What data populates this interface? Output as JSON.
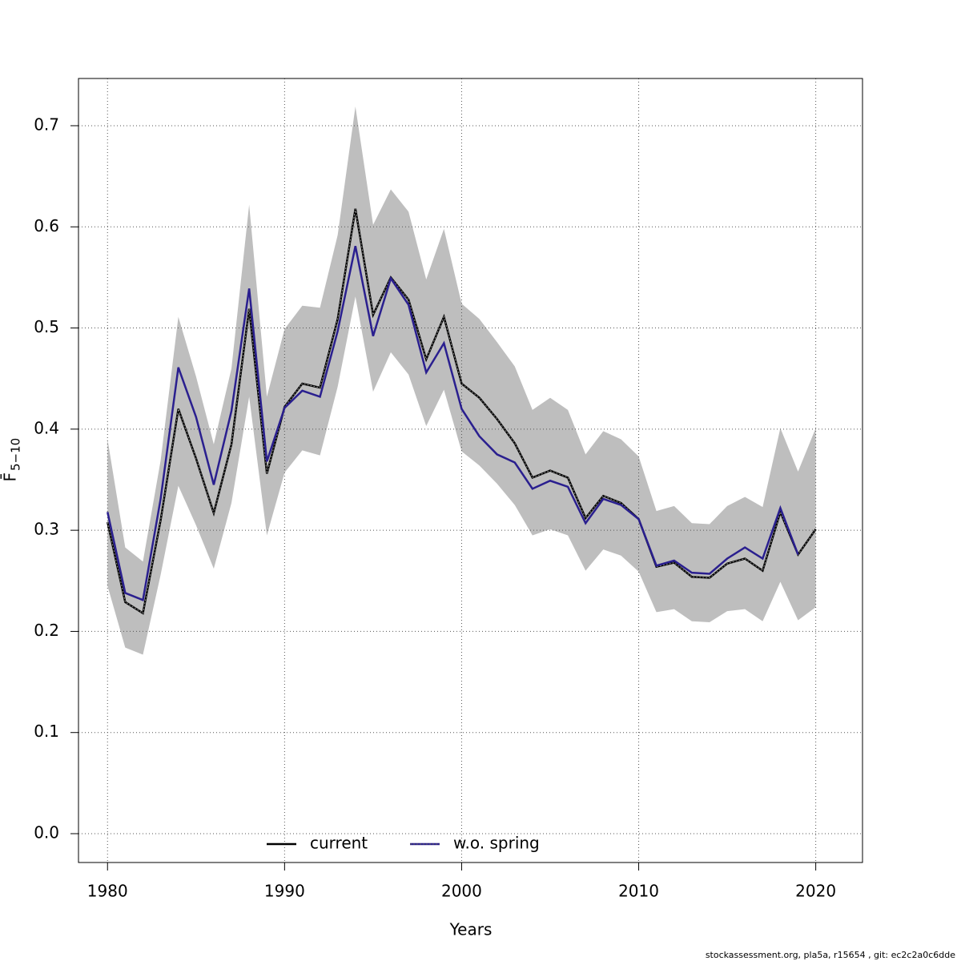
{
  "chart_data": {
    "type": "line",
    "x_label": "Years",
    "y_label": "F̄",
    "y_label_sub": "5−10",
    "footer": "stockassessment.org, pla5a, r15654 , git: ec2c2a0c6dde",
    "x": [
      1980,
      1981,
      1982,
      1983,
      1984,
      1985,
      1986,
      1987,
      1988,
      1989,
      1990,
      1991,
      1992,
      1993,
      1994,
      1995,
      1996,
      1997,
      1998,
      1999,
      2000,
      2001,
      2002,
      2003,
      2004,
      2005,
      2006,
      2007,
      2008,
      2009,
      2010,
      2011,
      2012,
      2013,
      2014,
      2015,
      2016,
      2017,
      2018,
      2019,
      2020
    ],
    "band": {
      "color": "#bebebe",
      "upper": [
        0.39,
        0.283,
        0.269,
        0.369,
        0.511,
        0.452,
        0.385,
        0.46,
        0.622,
        0.432,
        0.499,
        0.522,
        0.52,
        0.592,
        0.719,
        0.602,
        0.637,
        0.615,
        0.548,
        0.598,
        0.524,
        0.509,
        0.486,
        0.462,
        0.419,
        0.431,
        0.419,
        0.375,
        0.398,
        0.39,
        0.373,
        0.319,
        0.324,
        0.307,
        0.306,
        0.324,
        0.333,
        0.323,
        0.401,
        0.358,
        0.401
      ],
      "lower": [
        0.245,
        0.184,
        0.177,
        0.256,
        0.344,
        0.305,
        0.262,
        0.327,
        0.432,
        0.295,
        0.357,
        0.379,
        0.374,
        0.442,
        0.531,
        0.437,
        0.476,
        0.454,
        0.403,
        0.439,
        0.378,
        0.364,
        0.346,
        0.325,
        0.295,
        0.301,
        0.295,
        0.26,
        0.281,
        0.275,
        0.259,
        0.219,
        0.222,
        0.21,
        0.209,
        0.22,
        0.222,
        0.21,
        0.249,
        0.211,
        0.224
      ]
    },
    "series": [
      {
        "name": "current",
        "color": "#000000",
        "values": [
          0.308,
          0.229,
          0.218,
          0.31,
          0.42,
          0.371,
          0.317,
          0.385,
          0.519,
          0.356,
          0.422,
          0.445,
          0.441,
          0.509,
          0.618,
          0.513,
          0.55,
          0.528,
          0.469,
          0.511,
          0.445,
          0.431,
          0.41,
          0.386,
          0.352,
          0.359,
          0.352,
          0.312,
          0.334,
          0.327,
          0.311,
          0.264,
          0.268,
          0.254,
          0.253,
          0.267,
          0.272,
          0.26,
          0.318,
          0.276,
          0.301
        ]
      },
      {
        "name": "w.o. spring",
        "color": "#2a1f8f",
        "values": [
          0.318,
          0.238,
          0.231,
          0.331,
          0.461,
          0.412,
          0.345,
          0.418,
          0.539,
          0.368,
          0.421,
          0.438,
          0.432,
          0.497,
          0.581,
          0.492,
          0.549,
          0.523,
          0.456,
          0.485,
          0.42,
          0.393,
          0.375,
          0.367,
          0.341,
          0.349,
          0.343,
          0.307,
          0.331,
          0.325,
          0.311,
          0.265,
          0.27,
          0.258,
          0.257,
          0.272,
          0.283,
          0.272,
          0.322,
          0.276,
          null
        ]
      }
    ],
    "xlim": [
      1978.36,
      2022.64
    ],
    "xticks": [
      1980,
      1990,
      2000,
      2010,
      2020
    ],
    "ylim": [
      -0.0285,
      0.7467
    ],
    "yticks": [
      {
        "value": 0,
        "label": "0.0"
      },
      0.1,
      0.2,
      0.3,
      0.4,
      0.5,
      0.6,
      0.7
    ],
    "grid": true,
    "legend": "bottom"
  }
}
